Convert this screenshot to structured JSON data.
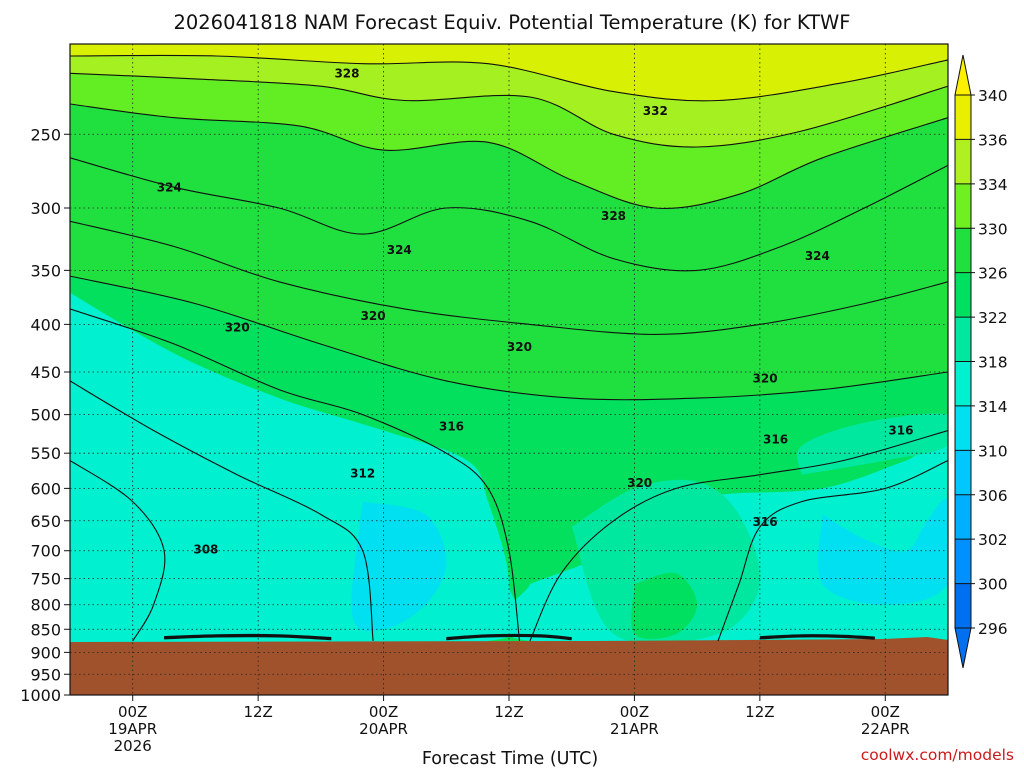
{
  "chart_data": {
    "type": "heatmap",
    "title": "2026041818 NAM Forecast Equiv. Potential Temperature (K) for KTWF",
    "xlabel": "Forecast Time (UTC)",
    "ylabel": "",
    "credit": "coolwx.com/models",
    "x_forecast_hours": [
      0,
      84
    ],
    "y_pressure_hpa": [
      1000,
      200
    ],
    "y_scale": "log",
    "y_ticks": [
      "250",
      "300",
      "350",
      "400",
      "450",
      "500",
      "550",
      "600",
      "650",
      "700",
      "750",
      "800",
      "850",
      "900",
      "950",
      "1000"
    ],
    "x_ticks": [
      {
        "hour": 6,
        "line1": "00Z",
        "line2": "19APR",
        "line3": "2026"
      },
      {
        "hour": 18,
        "line1": "12Z",
        "line2": "",
        "line3": ""
      },
      {
        "hour": 30,
        "line1": "00Z",
        "line2": "20APR",
        "line3": ""
      },
      {
        "hour": 42,
        "line1": "12Z",
        "line2": "",
        "line3": ""
      },
      {
        "hour": 54,
        "line1": "00Z",
        "line2": "21APR",
        "line3": ""
      },
      {
        "hour": 66,
        "line1": "12Z",
        "line2": "",
        "line3": ""
      },
      {
        "hour": 78,
        "line1": "00Z",
        "line2": "22APR",
        "line3": ""
      }
    ],
    "colorbar": {
      "labels": [
        "296",
        "300",
        "302",
        "306",
        "310",
        "314",
        "318",
        "322",
        "326",
        "330",
        "334",
        "336",
        "340"
      ],
      "colors": [
        "#0070f0",
        "#0090ff",
        "#00b0ff",
        "#00c8ff",
        "#00e0f0",
        "#00f0d0",
        "#00e8a0",
        "#00e060",
        "#20e040",
        "#70f020",
        "#b0f020",
        "#e8f000",
        "#fff000"
      ]
    },
    "terrain": {
      "color": "#a0522d",
      "surface_pressure_hpa": 875
    },
    "contour_labels": [
      {
        "value": "328",
        "hour": 26.5,
        "p": 215
      },
      {
        "value": "332",
        "hour": 56.0,
        "p": 236
      },
      {
        "value": "324",
        "hour": 9.5,
        "p": 285
      },
      {
        "value": "328",
        "hour": 52.0,
        "p": 306
      },
      {
        "value": "324",
        "hour": 31.5,
        "p": 333
      },
      {
        "value": "324",
        "hour": 71.5,
        "p": 338
      },
      {
        "value": "320",
        "hour": 16.0,
        "p": 403
      },
      {
        "value": "320",
        "hour": 29.0,
        "p": 392
      },
      {
        "value": "320",
        "hour": 43.0,
        "p": 423
      },
      {
        "value": "320",
        "hour": 66.5,
        "p": 457
      },
      {
        "value": "316",
        "hour": 36.5,
        "p": 515
      },
      {
        "value": "316",
        "hour": 67.5,
        "p": 532
      },
      {
        "value": "316",
        "hour": 79.5,
        "p": 520
      },
      {
        "value": "312",
        "hour": 28.0,
        "p": 578
      },
      {
        "value": "320",
        "hour": 54.5,
        "p": 592
      },
      {
        "value": "316",
        "hour": 66.5,
        "p": 652
      },
      {
        "value": "308",
        "hour": 13.0,
        "p": 698
      }
    ],
    "shading": [
      {
        "color": "#0070f0",
        "pts": [
          [
            0,
            725
          ],
          [
            1.5,
            690
          ],
          [
            1,
            760
          ],
          [
            0,
            780
          ]
        ]
      },
      {
        "color": "#00b0ff",
        "pts": [
          [
            0,
            560
          ],
          [
            6,
            640
          ],
          [
            8,
            705
          ],
          [
            7,
            780
          ],
          [
            4,
            860
          ],
          [
            0,
            870
          ]
        ]
      },
      {
        "color": "#0090ff",
        "pts": [
          [
            0,
            600
          ],
          [
            4,
            640
          ],
          [
            5,
            720
          ],
          [
            4,
            820
          ],
          [
            0,
            860
          ]
        ]
      },
      {
        "color": "#00c8ff",
        "pts": [
          [
            0,
            440
          ],
          [
            6,
            530
          ],
          [
            14,
            610
          ],
          [
            22,
            680
          ],
          [
            23,
            760
          ],
          [
            20,
            870
          ],
          [
            0,
            875
          ]
        ]
      },
      {
        "color": "#00b0ff",
        "pts": [
          [
            8,
            760
          ],
          [
            20,
            790
          ],
          [
            24,
            850
          ],
          [
            22,
            875
          ],
          [
            8,
            875
          ]
        ]
      },
      {
        "color": "#00e0f0",
        "pts": [
          [
            0,
            400
          ],
          [
            8,
            470
          ],
          [
            14,
            520
          ],
          [
            22,
            590
          ],
          [
            27,
            650
          ],
          [
            26,
            760
          ],
          [
            26,
            875
          ],
          [
            0,
            875
          ]
        ]
      },
      {
        "color": "#00f0d0",
        "pts": [
          [
            0,
            370
          ],
          [
            10,
            430
          ],
          [
            20,
            480
          ],
          [
            30,
            520
          ],
          [
            38,
            560
          ],
          [
            40,
            620
          ],
          [
            42,
            760
          ],
          [
            40,
            875
          ],
          [
            0,
            875
          ]
        ]
      },
      {
        "color": "#00e0f0",
        "pts": [
          [
            28,
            620
          ],
          [
            34,
            640
          ],
          [
            36,
            720
          ],
          [
            34,
            800
          ],
          [
            30,
            850
          ],
          [
            27,
            820
          ]
        ]
      },
      {
        "color": "#00f0d0",
        "pts": [
          [
            44,
            760
          ],
          [
            52,
            700
          ],
          [
            56,
            640
          ],
          [
            62,
            610
          ],
          [
            72,
            600
          ],
          [
            80,
            560
          ],
          [
            84,
            540
          ],
          [
            84,
            875
          ],
          [
            44,
            875
          ]
        ]
      },
      {
        "color": "#00e0f0",
        "pts": [
          [
            72,
            640
          ],
          [
            76,
            680
          ],
          [
            80,
            700
          ],
          [
            82,
            650
          ],
          [
            84,
            620
          ],
          [
            84,
            760
          ],
          [
            78,
            800
          ],
          [
            72,
            760
          ]
        ]
      },
      {
        "color": "#00e8a0",
        "pts": [
          [
            48,
            660
          ],
          [
            54,
            600
          ],
          [
            60,
            590
          ],
          [
            64,
            640
          ],
          [
            66,
            760
          ],
          [
            62,
            860
          ],
          [
            52,
            860
          ]
        ]
      },
      {
        "color": "#00e060",
        "pts": [
          [
            54,
            760
          ],
          [
            58,
            740
          ],
          [
            60,
            800
          ],
          [
            58,
            860
          ],
          [
            54,
            860
          ]
        ]
      },
      {
        "color": "#00e8a0",
        "pts": [
          [
            70,
            580
          ],
          [
            78,
            560
          ],
          [
            84,
            540
          ],
          [
            84,
            500
          ],
          [
            76,
            510
          ],
          [
            70,
            540
          ]
        ]
      }
    ],
    "contour_lines": [
      [
        [
          0,
          385
        ],
        [
          10,
          420
        ],
        [
          20,
          470
        ],
        [
          28,
          500
        ],
        [
          36,
          550
        ],
        [
          40,
          600
        ],
        [
          42,
          700
        ],
        [
          43,
          875
        ]
      ],
      [
        [
          0,
          460
        ],
        [
          8,
          520
        ],
        [
          16,
          580
        ],
        [
          24,
          640
        ],
        [
          28,
          700
        ],
        [
          29,
          875
        ]
      ],
      [
        [
          0,
          560
        ],
        [
          6,
          620
        ],
        [
          9,
          700
        ],
        [
          8,
          800
        ],
        [
          6,
          875
        ]
      ],
      [
        [
          44,
          875
        ],
        [
          47,
          740
        ],
        [
          52,
          650
        ],
        [
          58,
          600
        ],
        [
          66,
          580
        ],
        [
          74,
          560
        ],
        [
          84,
          520
        ]
      ],
      [
        [
          62,
          875
        ],
        [
          64,
          760
        ],
        [
          66,
          660
        ],
        [
          70,
          620
        ],
        [
          78,
          600
        ],
        [
          84,
          560
        ]
      ],
      [
        [
          0,
          355
        ],
        [
          12,
          380
        ],
        [
          24,
          420
        ],
        [
          36,
          460
        ],
        [
          48,
          480
        ],
        [
          60,
          480
        ],
        [
          72,
          470
        ],
        [
          84,
          450
        ]
      ],
      [
        [
          0,
          310
        ],
        [
          10,
          330
        ],
        [
          20,
          360
        ],
        [
          32,
          385
        ],
        [
          44,
          400
        ],
        [
          56,
          410
        ],
        [
          66,
          400
        ],
        [
          76,
          380
        ],
        [
          84,
          360
        ]
      ],
      [
        [
          0,
          265
        ],
        [
          10,
          285
        ],
        [
          20,
          300
        ],
        [
          28,
          320
        ],
        [
          36,
          300
        ],
        [
          44,
          310
        ],
        [
          52,
          340
        ],
        [
          60,
          350
        ],
        [
          68,
          330
        ],
        [
          76,
          300
        ],
        [
          84,
          270
        ]
      ],
      [
        [
          0,
          232
        ],
        [
          10,
          240
        ],
        [
          22,
          245
        ],
        [
          30,
          260
        ],
        [
          40,
          255
        ],
        [
          48,
          280
        ],
        [
          56,
          300
        ],
        [
          64,
          290
        ],
        [
          72,
          265
        ],
        [
          84,
          240
        ]
      ],
      [
        [
          0,
          215
        ],
        [
          12,
          218
        ],
        [
          24,
          222
        ],
        [
          32,
          230
        ],
        [
          44,
          228
        ],
        [
          52,
          250
        ],
        [
          60,
          258
        ],
        [
          70,
          248
        ],
        [
          84,
          222
        ]
      ],
      [
        [
          0,
          206
        ],
        [
          14,
          206
        ],
        [
          28,
          210
        ],
        [
          40,
          210
        ],
        [
          52,
          225
        ],
        [
          62,
          230
        ],
        [
          74,
          220
        ],
        [
          84,
          208
        ]
      ]
    ],
    "dotted_grid": true
  }
}
